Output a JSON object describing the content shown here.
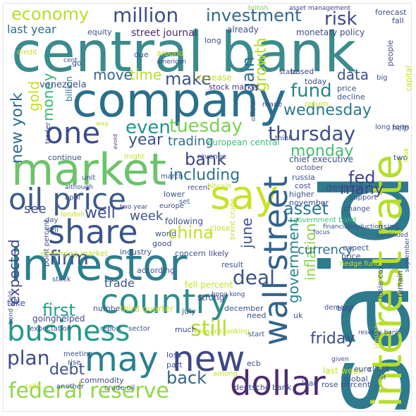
{
  "words": [
    {
      "id": "central-bank",
      "text": "central bank",
      "color": "#3b8b8c"
    },
    {
      "id": "said",
      "text": "said",
      "color": "#2e7b8e"
    },
    {
      "id": "company",
      "text": "company",
      "color": "#2a6f8e"
    },
    {
      "id": "market",
      "text": "market",
      "color": "#6cc36a"
    },
    {
      "id": "investor",
      "text": "investor",
      "color": "#2c7e8e"
    },
    {
      "id": "interest-rate",
      "text": "interest rate",
      "color": "#b5de2b"
    },
    {
      "id": "say",
      "text": "say",
      "color": "#c9e22a"
    },
    {
      "id": "country",
      "text": "country",
      "color": "#2e8d8b"
    },
    {
      "id": "oil-price",
      "text": "oil price",
      "color": "#3d5a8c"
    },
    {
      "id": "share",
      "text": "share",
      "color": "#3b568c"
    },
    {
      "id": "business",
      "text": "business",
      "color": "#1f9a8a"
    },
    {
      "id": "may",
      "text": "may",
      "color": "#2c7f8e"
    },
    {
      "id": "new",
      "text": "new",
      "color": "#3f4788"
    },
    {
      "id": "one",
      "text": "one",
      "color": "#3a4b8b"
    },
    {
      "id": "dollar",
      "text": "dollar",
      "color": "#4b2d6e"
    },
    {
      "id": "wall-street",
      "text": "wall street",
      "color": "#33638d"
    },
    {
      "id": "federal-reserve",
      "text": "federal reserve",
      "color": "#8fd744"
    },
    {
      "id": "million",
      "text": "million",
      "color": "#3e4c8a"
    },
    {
      "id": "investment",
      "text": "investment",
      "color": "#31688e"
    },
    {
      "id": "economy",
      "text": "economy",
      "color": "#b8de29"
    },
    {
      "id": "risk",
      "text": "risk",
      "color": "#3e4989"
    },
    {
      "id": "fund",
      "text": "fund",
      "color": "#25858e"
    },
    {
      "id": "thursday",
      "text": "thursday",
      "color": "#3c4f8a"
    },
    {
      "id": "tuesday",
      "text": "tuesday",
      "color": "#7ad151"
    },
    {
      "id": "wednesday",
      "text": "wednesday",
      "color": "#2a788e"
    },
    {
      "id": "government",
      "text": "government",
      "color": "#25838e"
    },
    {
      "id": "deal",
      "text": "deal",
      "color": "#3b528b"
    },
    {
      "id": "still",
      "text": "still",
      "color": "#b1dd2f"
    },
    {
      "id": "china",
      "text": "china",
      "color": "#c2df23"
    },
    {
      "id": "even",
      "text": "even",
      "color": "#1f948c"
    },
    {
      "id": "year",
      "text": "year",
      "color": "#3b528b"
    },
    {
      "id": "bank",
      "text": "bank",
      "color": "#404588"
    },
    {
      "id": "including",
      "text": "including",
      "color": "#2d708e"
    },
    {
      "id": "firm",
      "text": "firm",
      "color": "#3a548c"
    },
    {
      "id": "plan",
      "text": "plan",
      "color": "#3e4a89"
    },
    {
      "id": "back",
      "text": "back",
      "color": "#33638d"
    },
    {
      "id": "friday",
      "text": "friday",
      "color": "#3e4c8a"
    },
    {
      "id": "gain",
      "text": "gain",
      "color": "#2f6c8e"
    },
    {
      "id": "growth",
      "text": "growth",
      "color": "#b5de2b"
    },
    {
      "id": "time",
      "text": "time",
      "color": "#b8de29"
    },
    {
      "id": "make",
      "text": "make",
      "color": "#3a548c"
    },
    {
      "id": "move",
      "text": "move",
      "color": "#31678e"
    },
    {
      "id": "gold",
      "text": "gold",
      "color": "#c8e020"
    },
    {
      "id": "money",
      "text": "money",
      "color": "#35b779"
    },
    {
      "id": "new-york",
      "text": "new york",
      "color": "#2f6c8e"
    },
    {
      "id": "expected",
      "text": "expected",
      "color": "#3f4889"
    },
    {
      "id": "trading",
      "text": "trading",
      "color": "#2e6e8e"
    },
    {
      "id": "monday",
      "text": "monday",
      "color": "#42be71"
    },
    {
      "id": "asset",
      "text": "asset",
      "color": "#2a778e"
    },
    {
      "id": "fed",
      "text": "fed",
      "color": "#404387"
    },
    {
      "id": "many",
      "text": "many",
      "color": "#414487"
    },
    {
      "id": "inflation",
      "text": "inflation",
      "color": "#8bd646"
    },
    {
      "id": "currency",
      "text": "currency",
      "color": "#2c738e"
    },
    {
      "id": "june",
      "text": "june",
      "color": "#3b518b"
    },
    {
      "id": "well",
      "text": "well",
      "color": "#3e4c8a"
    },
    {
      "id": "week",
      "text": "week",
      "color": "#3b528b"
    },
    {
      "id": "first",
      "text": "first",
      "color": "#1fa187"
    },
    {
      "id": "debt",
      "text": "debt",
      "color": "#3b528b"
    },
    {
      "id": "data",
      "text": "data",
      "color": "#3b528b"
    },
    {
      "id": "last-year",
      "text": "last year",
      "color": "#2e6e8e"
    },
    {
      "id": "see",
      "text": "see",
      "color": "#3e4a89"
    },
    {
      "id": "trade",
      "text": "trade",
      "color": "#3a548c"
    },
    {
      "id": "european-central",
      "text": "european central",
      "color": "#3fbc73"
    },
    {
      "id": "chief-executive",
      "text": "chief executive",
      "color": "#3b528b"
    },
    {
      "id": "monetary-policy",
      "text": "monetary policy",
      "color": "#3e4c8a"
    },
    {
      "id": "stock-market",
      "text": "stock market",
      "color": "#46327e"
    },
    {
      "id": "street-journal",
      "text": "street journal",
      "color": "#4b2d6e"
    },
    {
      "id": "already",
      "text": "already",
      "color": "#3b518b"
    },
    {
      "id": "equity",
      "text": "equity",
      "color": "#3b528b"
    },
    {
      "id": "forecast",
      "text": "forecast",
      "color": "#3e4c8a"
    },
    {
      "id": "asset-management",
      "text": "asset management",
      "color": "#414487"
    },
    {
      "id": "british",
      "text": "british",
      "color": "#7fd34e"
    },
    {
      "id": "fall",
      "text": "fall",
      "color": "#3e4a89"
    },
    {
      "id": "venezuela",
      "text": "venezuela",
      "color": "#3b528b"
    },
    {
      "id": "billion",
      "text": "billion",
      "color": "#2c728e"
    },
    {
      "id": "increase",
      "text": "increase",
      "color": "#c0df25"
    },
    {
      "id": "state",
      "text": "state",
      "color": "#3b528b"
    },
    {
      "id": "based",
      "text": "based",
      "color": "#3e4a89"
    },
    {
      "id": "today",
      "text": "today",
      "color": "#3e4c8a"
    },
    {
      "id": "price",
      "text": "price",
      "color": "#3b528b"
    },
    {
      "id": "decline",
      "text": "decline",
      "color": "#3b528b"
    },
    {
      "id": "return",
      "text": "return",
      "color": "#c8e020"
    },
    {
      "id": "made",
      "text": "made",
      "color": "#3b528b"
    },
    {
      "id": "think",
      "text": "think",
      "color": "#3e4a89"
    },
    {
      "id": "long-term",
      "text": "long term",
      "color": "#3b528b"
    },
    {
      "id": "help",
      "text": "help",
      "color": "#3b528b"
    },
    {
      "id": "people",
      "text": "people",
      "color": "#3e4a89"
    },
    {
      "id": "big",
      "text": "big",
      "color": "#3b528b"
    },
    {
      "id": "capital",
      "text": "capital",
      "color": "#c8e020"
    },
    {
      "id": "trader",
      "text": "trader",
      "color": "#3e4c8a"
    },
    {
      "id": "continue",
      "text": "continue",
      "color": "#3b528b"
    },
    {
      "id": "might",
      "text": "might",
      "color": "#c0df25"
    },
    {
      "id": "march",
      "text": "march",
      "color": "#3b528b"
    },
    {
      "id": "revenue",
      "text": "revenue",
      "color": "#3b528b"
    },
    {
      "id": "october",
      "text": "october",
      "color": "#3e4a89"
    },
    {
      "id": "two",
      "text": "two",
      "color": "#3b528b"
    },
    {
      "id": "look",
      "text": "look",
      "color": "#c8e020"
    },
    {
      "id": "unit",
      "text": "unit",
      "color": "#3e4a89"
    },
    {
      "id": "although",
      "text": "although",
      "color": "#3b528b"
    },
    {
      "id": "april",
      "text": "april",
      "color": "#3b528b"
    },
    {
      "id": "london",
      "text": "london",
      "color": "#c8e020"
    },
    {
      "id": "europe",
      "text": "europe",
      "color": "#3e4a89"
    },
    {
      "id": "lower",
      "text": "lower",
      "color": "#3b528b"
    },
    {
      "id": "set",
      "text": "set",
      "color": "#3b528b"
    },
    {
      "id": "recent",
      "text": "recent",
      "color": "#3e4a89"
    },
    {
      "id": "bitcoin",
      "text": "bitcoin",
      "color": "#c0df25"
    },
    {
      "id": "russia",
      "text": "russia",
      "color": "#3b528b"
    },
    {
      "id": "cost",
      "text": "cost",
      "color": "#3e4a89"
    },
    {
      "id": "despite",
      "text": "despite",
      "color": "#3b528b"
    },
    {
      "id": "higher",
      "text": "higher",
      "color": "#3b528b"
    },
    {
      "id": "november",
      "text": "november",
      "color": "#3e4a89"
    },
    {
      "id": "government-bond",
      "text": "government bond",
      "color": "#3fbc73"
    },
    {
      "id": "support",
      "text": "support",
      "color": "#3b528b"
    },
    {
      "id": "change",
      "text": "change",
      "color": "#3e4a89"
    },
    {
      "id": "financial",
      "text": "financial",
      "color": "#3b528b"
    },
    {
      "id": "production",
      "text": "production",
      "color": "#3b528b"
    },
    {
      "id": "rising",
      "text": "rising",
      "color": "#3b528b"
    },
    {
      "id": "continued",
      "text": "continued",
      "color": "#3e4a89"
    },
    {
      "id": "focus",
      "text": "focus",
      "color": "#3b528b"
    },
    {
      "id": "expect",
      "text": "expect",
      "color": "#3b528b"
    },
    {
      "id": "price-2",
      "text": "price",
      "color": "#3e4a89"
    },
    {
      "id": "hedge-fund",
      "text": "hedge fund",
      "color": "#c8e020"
    },
    {
      "id": "following",
      "text": "following",
      "color": "#3b528b"
    },
    {
      "id": "close",
      "text": "close",
      "color": "#c8e020"
    },
    {
      "id": "brent-crude",
      "text": "brent crude",
      "color": "#c0df25"
    },
    {
      "id": "world",
      "text": "world",
      "color": "#3b528b"
    },
    {
      "id": "good",
      "text": "good",
      "color": "#3e4a89"
    },
    {
      "id": "industry",
      "text": "industry",
      "color": "#3b528b"
    },
    {
      "id": "concern",
      "text": "concern",
      "color": "#3b528b"
    },
    {
      "id": "likely",
      "text": "likely",
      "color": "#3e4a89"
    },
    {
      "id": "result",
      "text": "result",
      "color": "#3b528b"
    },
    {
      "id": "emerging-market",
      "text": "emerging market",
      "color": "#c0df25"
    },
    {
      "id": "point-percent",
      "text": "point percent",
      "color": "#3e4a89"
    },
    {
      "id": "stock",
      "text": "stock",
      "color": "#3b528b"
    },
    {
      "id": "according",
      "text": "according",
      "color": "#3b528b"
    },
    {
      "id": "fell-percent",
      "text": "fell percent",
      "color": "#c8e020"
    },
    {
      "id": "hong-kong",
      "text": "hong kong",
      "color": "#3e4a89"
    },
    {
      "id": "december",
      "text": "december",
      "color": "#3b528b"
    },
    {
      "id": "josie-cox",
      "text": "josie cox",
      "color": "#3b528b"
    },
    {
      "id": "remain",
      "text": "remain",
      "color": "#3e4a89"
    },
    {
      "id": "september",
      "text": "september",
      "color": "#3b528b"
    },
    {
      "id": "take",
      "text": "take",
      "color": "#3b528b"
    },
    {
      "id": "goinghelped",
      "text": "goinghelped",
      "color": "#3e4a89"
    },
    {
      "id": "number",
      "text": "number",
      "color": "#3b528b"
    },
    {
      "id": "third-quarter",
      "text": "third quarter",
      "color": "#c8e020"
    },
    {
      "id": "july",
      "text": "july",
      "color": "#3b528b"
    },
    {
      "id": "strong",
      "text": "strong",
      "color": "#3e4a89"
    },
    {
      "id": "need",
      "text": "need",
      "color": "#3b528b"
    },
    {
      "id": "uk",
      "text": "uk",
      "color": "#3b528b"
    },
    {
      "id": "demand",
      "text": "demand",
      "color": "#3e4a89"
    },
    {
      "id": "buy",
      "text": "buy",
      "color": "#3b528b"
    },
    {
      "id": "bond-yield",
      "text": "bond yield",
      "color": "#3b528b"
    },
    {
      "id": "expectation",
      "text": "expectation",
      "color": "#3e4a89"
    },
    {
      "id": "report",
      "text": "report",
      "color": "#3b528b"
    },
    {
      "id": "sector",
      "text": "sector",
      "color": "#3b528b"
    },
    {
      "id": "much",
      "text": "much",
      "color": "#3e4a89"
    },
    {
      "id": "forward-looking",
      "text": "forward looking",
      "color": "#c8e020"
    },
    {
      "id": "start",
      "text": "start",
      "color": "#3b528b"
    },
    {
      "id": "reserve-bank",
      "text": "reserve bank",
      "color": "#3e4a89"
    },
    {
      "id": "loss",
      "text": "loss",
      "color": "#3b528b"
    },
    {
      "id": "part",
      "text": "part",
      "color": "#3b528b"
    },
    {
      "id": "ecb",
      "text": "ecb",
      "color": "#3e4a89"
    },
    {
      "id": "among",
      "text": "among",
      "color": "#c8e020"
    },
    {
      "id": "meeting",
      "text": "meeting",
      "color": "#3b528b"
    },
    {
      "id": "rise",
      "text": "rise",
      "color": "#3b528b"
    },
    {
      "id": "commodity",
      "text": "commodity",
      "color": "#3e4a89"
    },
    {
      "id": "rally",
      "text": "rally",
      "color": "#c8e020"
    },
    {
      "id": "another",
      "text": "another",
      "color": "#3b528b"
    },
    {
      "id": "crude-oil",
      "text": "crude oil",
      "color": "#3b528b"
    },
    {
      "id": "deutsche-bank",
      "text": "deutsche bank",
      "color": "#3e4a89"
    },
    {
      "id": "loan",
      "text": "loan",
      "color": "#3b528b"
    },
    {
      "id": "rose-percent",
      "text": "rose percent",
      "color": "#3b528b"
    },
    {
      "id": "last-week",
      "text": "last week",
      "color": "#c8e020"
    },
    {
      "id": "euro",
      "text": "euro",
      "color": "#3e4a89"
    },
    {
      "id": "client",
      "text": "client",
      "color": "#3b528b"
    },
    {
      "id": "global",
      "text": "global",
      "color": "#3b528b"
    },
    {
      "id": "given",
      "text": "given",
      "color": "#3e4a89"
    },
    {
      "id": "january",
      "text": "january",
      "color": "#c8e020"
    },
    {
      "id": "hit",
      "text": "hit",
      "color": "#3b528b"
    },
    {
      "id": "credit",
      "text": "credit",
      "color": "#c8e020"
    },
    {
      "id": "cent",
      "text": "cent",
      "color": "#3b528b"
    },
    {
      "id": "go",
      "text": "go",
      "color": "#3e4a89"
    },
    {
      "id": "due",
      "text": "due",
      "color": "#3b528b"
    },
    {
      "id": "around",
      "text": "around",
      "color": "#c8e020"
    },
    {
      "id": "american",
      "text": "american",
      "color": "#3e4a89"
    },
    {
      "id": "long",
      "text": "long",
      "color": "#3b528b"
    },
    {
      "id": "way",
      "text": "way",
      "color": "#c8e020"
    },
    {
      "id": "official",
      "text": "official",
      "color": "#3b528b"
    },
    {
      "id": "avoid",
      "text": "avoid",
      "color": "#3e4a89"
    },
    {
      "id": "day",
      "text": "day",
      "color": "#3b528b"
    },
    {
      "id": "sell",
      "text": "sell",
      "color": "#3b528b"
    },
    {
      "id": "two-year",
      "text": "two year",
      "color": "#3e4a89"
    }
  ]
}
